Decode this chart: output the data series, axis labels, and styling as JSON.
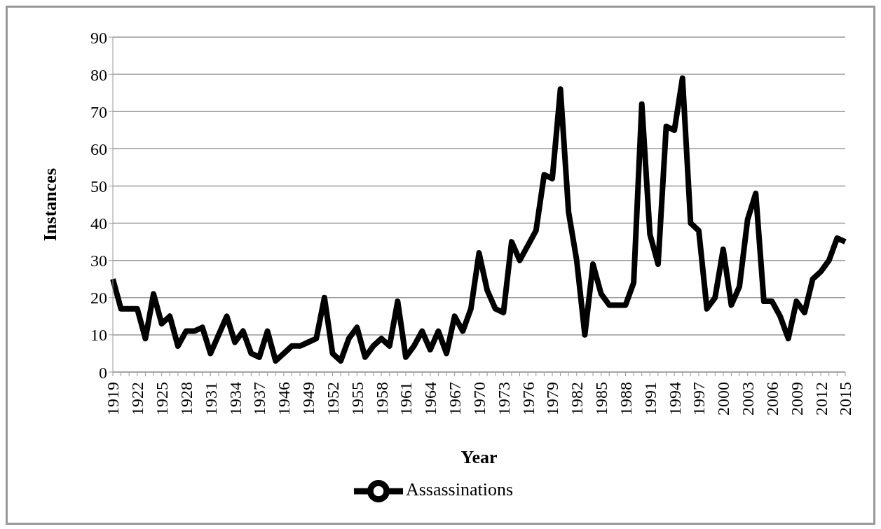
{
  "chart_data": {
    "type": "line",
    "xlabel": "Year",
    "ylabel": "Instances",
    "categories": [
      "1919",
      null,
      null,
      "1922",
      null,
      null,
      "1925",
      null,
      null,
      "1928",
      null,
      null,
      "1931",
      null,
      null,
      "1934",
      null,
      null,
      "1937",
      null,
      null,
      "1946",
      null,
      null,
      "1949",
      null,
      null,
      "1952",
      null,
      null,
      "1955",
      null,
      null,
      "1958",
      null,
      null,
      "1961",
      null,
      null,
      "1964",
      null,
      null,
      "1967",
      null,
      null,
      "1970",
      null,
      null,
      "1973",
      null,
      null,
      "1976",
      null,
      null,
      "1979",
      null,
      null,
      "1982",
      null,
      null,
      "1985",
      null,
      null,
      "1988",
      null,
      null,
      "1991",
      null,
      null,
      "1994",
      null,
      null,
      "1997",
      null,
      null,
      "2000",
      null,
      null,
      "2003",
      null,
      null,
      "2006",
      null,
      null,
      "2009",
      null,
      null,
      "2012",
      null,
      null,
      "2015"
    ],
    "series": [
      {
        "name": "Assassinations",
        "color": "#000000",
        "values": [
          25,
          17,
          17,
          17,
          9,
          21,
          13,
          15,
          7,
          11,
          11,
          12,
          5,
          10,
          15,
          8,
          11,
          5,
          4,
          11,
          3,
          5,
          7,
          7,
          8,
          9,
          20,
          5,
          3,
          9,
          12,
          4,
          7,
          9,
          7,
          19,
          4,
          7,
          11,
          6,
          11,
          5,
          15,
          11,
          17,
          32,
          22,
          17,
          16,
          35,
          30,
          34,
          38,
          53,
          52,
          76,
          43,
          30,
          10,
          29,
          21,
          18,
          18,
          18,
          24,
          72,
          37,
          29,
          66,
          65,
          79,
          40,
          38,
          17,
          20,
          33,
          18,
          23,
          41,
          48,
          19,
          19,
          15,
          9,
          19,
          16,
          25,
          27,
          30,
          36,
          35
        ]
      }
    ],
    "ylim": [
      0,
      90
    ],
    "yticks": [
      0,
      10,
      20,
      30,
      40,
      50,
      60,
      70,
      80,
      90
    ],
    "grid": "y",
    "legend": "bottom",
    "marker": "none",
    "line_style": "solid"
  }
}
